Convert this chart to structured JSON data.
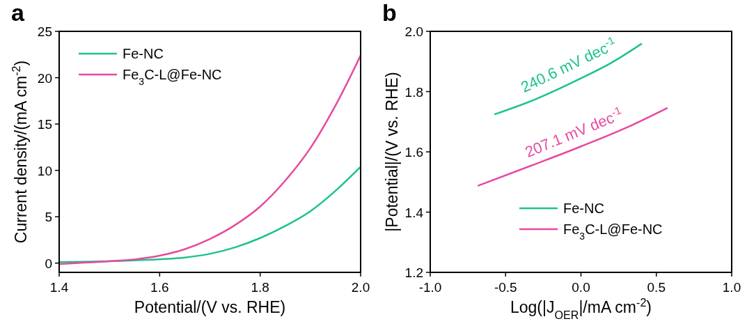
{
  "chart_data": [
    {
      "type": "line",
      "title": "a",
      "xlabel": "Potential/(V vs. RHE)",
      "ylabel": "Current density/(mA cm$^{-2}$)",
      "xlim": [
        1.4,
        2.0
      ],
      "xticks": [
        {
          "value": 1.4,
          "label": "1.4"
        },
        {
          "value": 1.6,
          "label": "1.6"
        },
        {
          "value": 1.8,
          "label": "1.8"
        },
        {
          "value": 2.0,
          "label": "2.0"
        }
      ],
      "ylim": [
        -1,
        25
      ],
      "yticks": [
        0,
        5,
        10,
        15,
        20,
        25
      ],
      "legend": "top left",
      "grid": false,
      "series": [
        {
          "name": "Fe-NC",
          "color": "#1cc28e",
          "x": [
            1.4,
            1.45,
            1.5,
            1.55,
            1.6,
            1.65,
            1.7,
            1.75,
            1.8,
            1.85,
            1.9,
            1.95,
            2.0
          ],
          "values": [
            0.1,
            0.15,
            0.2,
            0.3,
            0.4,
            0.6,
            1.0,
            1.7,
            2.7,
            4.0,
            5.6,
            7.8,
            10.4
          ]
        },
        {
          "name": "Fe$_{3}$C-L@Fe-NC",
          "color": "#e8489e",
          "x": [
            1.4,
            1.45,
            1.5,
            1.55,
            1.6,
            1.65,
            1.7,
            1.75,
            1.8,
            1.85,
            1.9,
            1.95,
            2.0
          ],
          "values": [
            -0.1,
            0.05,
            0.2,
            0.4,
            0.8,
            1.5,
            2.6,
            4.1,
            6.1,
            8.9,
            12.4,
            17.0,
            22.4
          ]
        }
      ]
    },
    {
      "type": "line",
      "title": "b",
      "xlabel": "Log(|J$_{OER}$|/mA cm$^{-2}$)",
      "ylabel": "|Potential|/(V vs. RHE)",
      "xlim": [
        -1.0,
        1.0
      ],
      "xticks": [
        {
          "value": -1,
          "label": "-1.0"
        },
        {
          "value": -0.5,
          "label": "-0.5"
        },
        {
          "value": 0,
          "label": "0.0"
        },
        {
          "value": 0.5,
          "label": "0.5"
        },
        {
          "value": 1,
          "label": "1.0"
        }
      ],
      "ylim": [
        1.2,
        2.0
      ],
      "yticks": [
        {
          "value": 1.2,
          "label": "1.2"
        },
        {
          "value": 1.4,
          "label": "1.4"
        },
        {
          "value": 1.6,
          "label": "1.6"
        },
        {
          "value": 1.8,
          "label": "1.8"
        },
        {
          "value": 2.0,
          "label": "2.0"
        }
      ],
      "legend": "bottom",
      "grid": false,
      "annotations": [
        "240.6 mV dec$^{-1}$",
        "207.1 mV dec$^{-1}$"
      ],
      "series": [
        {
          "name": "Fe-NC",
          "color": "#1cc28e",
          "x": [
            -0.57,
            -0.3,
            0.0,
            0.2,
            0.4
          ],
          "values": [
            1.725,
            1.775,
            1.844,
            1.895,
            1.958
          ]
        },
        {
          "name": "Fe$_{3}$C-L@Fe-NC",
          "color": "#e8489e",
          "x": [
            -0.68,
            -0.3,
            0.0,
            0.3,
            0.57
          ],
          "values": [
            1.488,
            1.56,
            1.618,
            1.68,
            1.745
          ]
        }
      ]
    }
  ]
}
